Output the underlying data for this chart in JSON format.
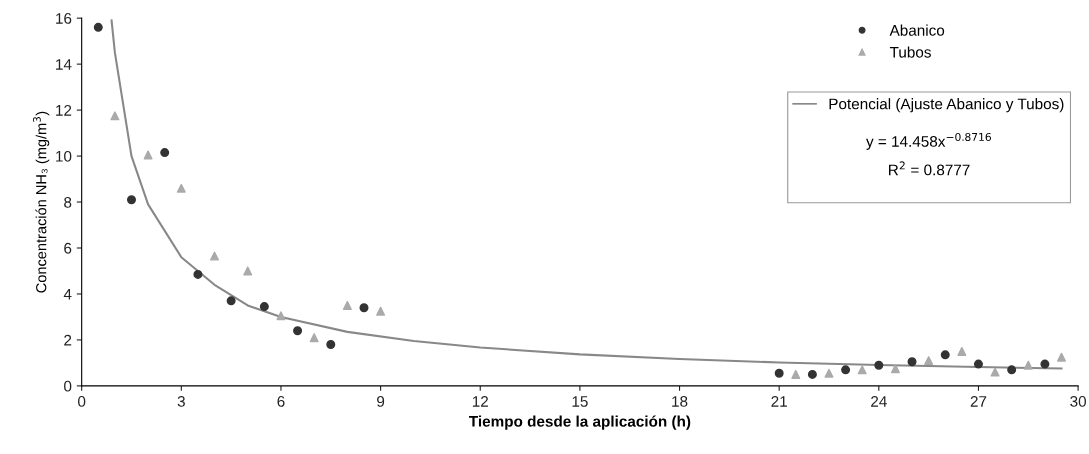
{
  "chart_data": {
    "type": "scatter",
    "xlabel": "Tiempo desde la aplicación (h)",
    "ylabel": "Concentración NH₃ (mg/m$^{3}$)",
    "xlim": [
      0,
      30
    ],
    "xticks": [
      0,
      3,
      6,
      9,
      12,
      15,
      18,
      21,
      24,
      27,
      30
    ],
    "ylim": [
      0,
      16
    ],
    "yticks": [
      0,
      2,
      4,
      6,
      8,
      10,
      12,
      14,
      16
    ],
    "grid": false,
    "legend": "top right",
    "series": [
      {
        "name": "Abanico",
        "color": "#333333",
        "marker": "circle",
        "x": [
          0.5,
          1.5,
          2.5,
          3.5,
          4.5,
          5.5,
          6.5,
          7.5,
          8.5,
          21,
          22,
          23,
          24,
          25,
          26,
          27,
          28,
          29
        ],
        "values": [
          15.6,
          8.1,
          10.15,
          4.85,
          3.7,
          3.45,
          2.4,
          1.8,
          3.4,
          0.55,
          0.5,
          0.7,
          0.9,
          1.05,
          1.35,
          0.95,
          0.7,
          0.95
        ]
      },
      {
        "name": "Tubos",
        "color": "#aaaaaa",
        "marker": "triangle",
        "x": [
          1,
          2,
          3,
          4,
          5,
          6,
          7,
          8,
          9,
          21.5,
          22.5,
          23.5,
          24.5,
          25.5,
          26.5,
          27.5,
          28.5,
          29.5
        ],
        "values": [
          11.75,
          10.05,
          8.6,
          5.65,
          5.0,
          3.05,
          2.1,
          3.5,
          3.25,
          0.5,
          0.55,
          0.7,
          0.75,
          1.1,
          1.5,
          0.6,
          0.9,
          1.25
        ]
      },
      {
        "name": "Potencial (Ajuste Abanico y Tubos)",
        "type": "line",
        "color": "#888888",
        "marker": "none",
        "line_style": "solid",
        "x": [
          0.9,
          1,
          1.5,
          2,
          3,
          4,
          5,
          6,
          8,
          10,
          12,
          15,
          18,
          21,
          24,
          27,
          29.5
        ],
        "values": [
          15.9,
          14.5,
          10.0,
          7.9,
          5.6,
          4.4,
          3.5,
          3.0,
          2.35,
          1.95,
          1.67,
          1.37,
          1.17,
          1.02,
          0.91,
          0.82,
          0.76
        ]
      }
    ],
    "annotations": [
      "y = 14.458x$^{−0.8716}$",
      "R$^{2}$ = 0.8777"
    ]
  }
}
